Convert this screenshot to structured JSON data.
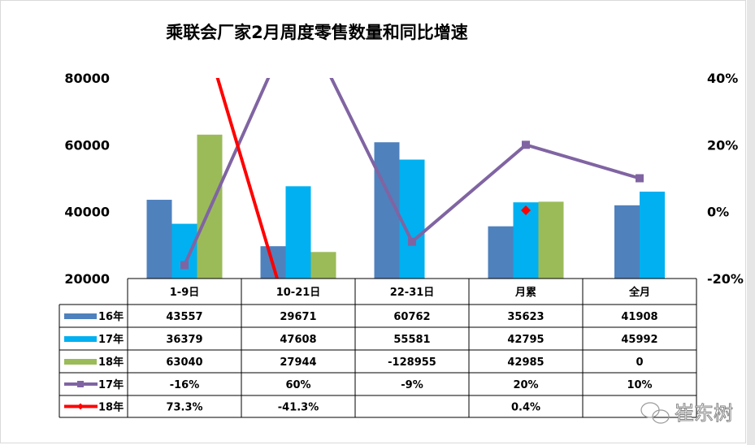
{
  "chart_data": {
    "type": "bar+line",
    "title": "乘联会厂家2月周度零售数量和同比增速",
    "categories": [
      "1-9日",
      "10-21日",
      "22-31日",
      "月累",
      "全月"
    ],
    "y_left": {
      "range": [
        20000,
        80000
      ],
      "ticks": [
        "20000",
        "40000",
        "60000",
        "80000"
      ]
    },
    "y_right": {
      "range": [
        -20,
        40
      ],
      "ticks": [
        "-20%",
        "0%",
        "20%",
        "40%"
      ]
    },
    "bar_series": [
      {
        "name": "16年",
        "color": "#4f81bd",
        "values": [
          43557,
          29671,
          60762,
          35623,
          41908
        ],
        "labels": [
          "43557",
          "29671",
          "60762",
          "35623",
          "41908"
        ]
      },
      {
        "name": "17年",
        "color": "#00b0f0",
        "values": [
          36379,
          47608,
          55581,
          42795,
          45992
        ],
        "labels": [
          "36379",
          "47608",
          "55581",
          "42795",
          "45992"
        ]
      },
      {
        "name": "18年",
        "color": "#9bbb59",
        "values": [
          63040,
          27944,
          -128955,
          42985,
          0
        ],
        "labels": [
          "63040",
          "27944",
          "-128955",
          "42985",
          "0"
        ]
      }
    ],
    "line_series": [
      {
        "name": "17年",
        "color": "#8064a2",
        "marker": "square",
        "values": [
          -16,
          60,
          -9,
          20,
          10
        ],
        "labels": [
          "-16%",
          "60%",
          "-9%",
          "20%",
          "10%"
        ]
      },
      {
        "name": "18年",
        "color": "#ff0000",
        "marker": "diamond",
        "values": [
          73.3,
          -41.3,
          null,
          0.4,
          null
        ],
        "labels": [
          "73.3%",
          "-41.3%",
          "",
          "0.4%",
          ""
        ]
      }
    ],
    "legend": "data-table"
  },
  "watermark": "崔东树"
}
